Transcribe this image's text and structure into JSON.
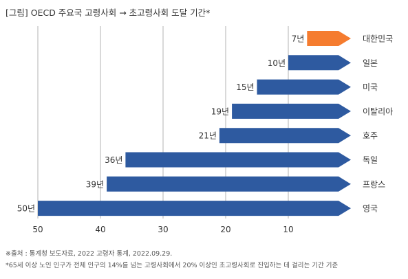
{
  "title": "[그림] OECD 주요국 고령사회 → 초고령사회 도달 기간*",
  "chart_data": {
    "type": "bar",
    "orientation": "horizontal",
    "x_reversed": true,
    "xlim": [
      0,
      52
    ],
    "x_ticks": [
      "50",
      "40",
      "30",
      "20",
      "10"
    ],
    "x_tick_values": [
      50,
      40,
      30,
      20,
      10
    ],
    "grid": "vertical",
    "bars": [
      {
        "category": "대한민국",
        "value": 7,
        "label": "7년",
        "highlight": true
      },
      {
        "category": "일본",
        "value": 10,
        "label": "10년",
        "highlight": false
      },
      {
        "category": "미국",
        "value": 15,
        "label": "15년",
        "highlight": false
      },
      {
        "category": "이탈리아",
        "value": 19,
        "label": "19년",
        "highlight": false
      },
      {
        "category": "호주",
        "value": 21,
        "label": "21년",
        "highlight": false
      },
      {
        "category": "독일",
        "value": 36,
        "label": "36년",
        "highlight": false
      },
      {
        "category": "프랑스",
        "value": 39,
        "label": "39년",
        "highlight": false
      },
      {
        "category": "영국",
        "value": 50,
        "label": "50년",
        "highlight": false
      }
    ],
    "colors": {
      "highlight": "#f57c2f",
      "default": "#2e5aa0",
      "grid": "#b3b3b3",
      "text": "#333333"
    }
  },
  "notes": {
    "source": "※출처 : 통계청 보도자료, 2022 고령자 통계, 2022.09.29.",
    "footnote": "*65세 이상 노인 인구가 전체 인구의 14%를 넘는 고령사회에서 20% 이상인 초고령사회로 진입하는 데 걸리는 기간 기준"
  }
}
